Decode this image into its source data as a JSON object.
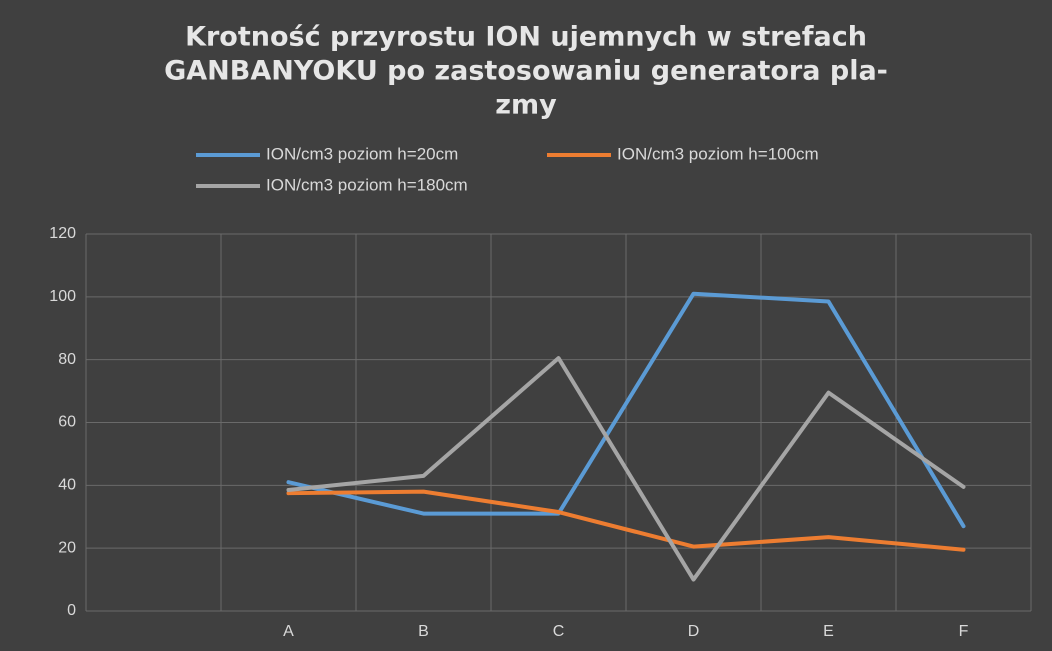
{
  "chart_data": {
    "type": "line",
    "title": [
      "Krotność przyrostu ION ujemnych w strefach",
      "GANBANYOKU po zastosowaniu generatora pla-",
      "zmy"
    ],
    "categories": [
      null,
      "A",
      "B",
      "C",
      "D",
      "E",
      "F"
    ],
    "series": [
      {
        "name": "ION/cm3 poziom h=20cm",
        "color": "#5b9bd5",
        "values": [
          null,
          41,
          31,
          31,
          101,
          98.5,
          27
        ]
      },
      {
        "name": "ION/cm3 poziom h=100cm",
        "color": "#ed7d31",
        "values": [
          null,
          37.5,
          38,
          31.5,
          20.5,
          23.5,
          19.5
        ]
      },
      {
        "name": "ION/cm3 poziom h=180cm",
        "color": "#a5a5a5",
        "values": [
          null,
          38.5,
          43,
          80.5,
          10,
          69.5,
          39.5
        ]
      }
    ],
    "ylim": [
      0,
      120
    ],
    "yticks": [
      0,
      20,
      40,
      60,
      80,
      100,
      120
    ],
    "grid": true
  }
}
